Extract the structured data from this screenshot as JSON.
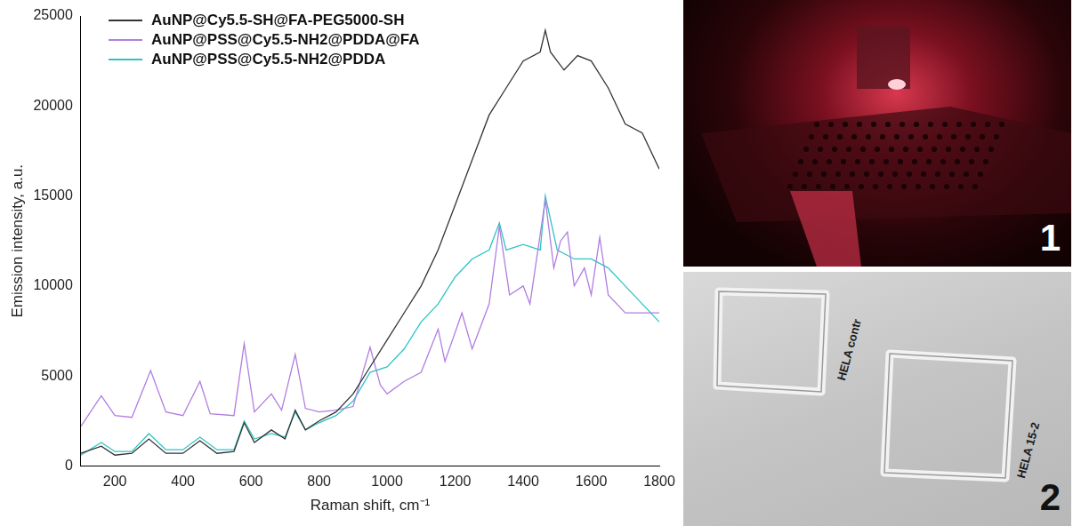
{
  "chart_data": {
    "type": "line",
    "x_label": "Raman shift, cm⁻¹",
    "y_label": "Emission intensity, a.u.",
    "xlim": [
      100,
      1800
    ],
    "xticks": [
      200,
      400,
      600,
      800,
      1000,
      1200,
      1400,
      1600,
      1800
    ],
    "ylim": [
      0,
      25000
    ],
    "yticks": [
      0,
      5000,
      10000,
      15000,
      20000,
      25000
    ],
    "grid": false,
    "legend": "upper left",
    "series": [
      {
        "name": "AuNP@Cy5.5-SH@FA-PEG5000-SH",
        "color": "#333333",
        "x": [
          100,
          160,
          200,
          250,
          300,
          350,
          400,
          450,
          500,
          550,
          580,
          610,
          660,
          700,
          730,
          760,
          800,
          850,
          900,
          950,
          1000,
          1050,
          1100,
          1150,
          1200,
          1250,
          1300,
          1350,
          1400,
          1450,
          1465,
          1480,
          1520,
          1560,
          1600,
          1650,
          1700,
          1750,
          1800
        ],
        "values": [
          700,
          1100,
          600,
          700,
          1500,
          700,
          700,
          1400,
          700,
          800,
          2400,
          1300,
          2000,
          1500,
          3100,
          2000,
          2500,
          3000,
          4000,
          5500,
          7000,
          8500,
          10000,
          12000,
          14500,
          17000,
          19500,
          21000,
          22500,
          23000,
          24200,
          23000,
          22000,
          22800,
          22500,
          21000,
          19000,
          18500,
          16500
        ]
      },
      {
        "name": "AuNP@PSS@Cy5.5-NH2@PDDA@FA",
        "color": "#b07ee0",
        "x": [
          100,
          160,
          200,
          250,
          305,
          350,
          400,
          450,
          480,
          550,
          580,
          610,
          660,
          690,
          730,
          760,
          800,
          850,
          900,
          950,
          980,
          1000,
          1050,
          1100,
          1150,
          1170,
          1220,
          1250,
          1300,
          1330,
          1360,
          1400,
          1420,
          1465,
          1490,
          1510,
          1530,
          1550,
          1580,
          1600,
          1625,
          1650,
          1700,
          1750,
          1800
        ],
        "values": [
          2200,
          3900,
          2800,
          2700,
          5300,
          3000,
          2800,
          4700,
          2900,
          2800,
          6800,
          3000,
          4000,
          3100,
          6200,
          3200,
          3000,
          3100,
          3300,
          6600,
          4500,
          4000,
          4700,
          5200,
          7600,
          5800,
          8500,
          6500,
          9000,
          13300,
          9500,
          10000,
          9000,
          14800,
          11000,
          12500,
          13000,
          10000,
          11000,
          9500,
          12700,
          9500,
          8500,
          8500,
          8500
        ]
      },
      {
        "name": "AuNP@PSS@Cy5.5-NH2@PDDA",
        "color": "#2ec4c4",
        "x": [
          100,
          160,
          200,
          250,
          300,
          350,
          400,
          450,
          500,
          550,
          580,
          610,
          660,
          700,
          730,
          760,
          800,
          850,
          900,
          950,
          1000,
          1050,
          1100,
          1150,
          1200,
          1250,
          1300,
          1330,
          1350,
          1400,
          1450,
          1465,
          1500,
          1550,
          1600,
          1650,
          1700,
          1750,
          1800
        ],
        "values": [
          600,
          1300,
          800,
          800,
          1800,
          900,
          900,
          1600,
          900,
          900,
          2500,
          1500,
          1800,
          1600,
          3000,
          2000,
          2400,
          2800,
          3600,
          5200,
          5500,
          6500,
          8000,
          9000,
          10500,
          11500,
          12000,
          13500,
          12000,
          12300,
          12000,
          15000,
          12000,
          11500,
          11500,
          11000,
          10000,
          9000,
          8000
        ]
      }
    ]
  },
  "photos": [
    {
      "label": "1",
      "texts": []
    },
    {
      "label": "2",
      "texts": [
        "HELA contr",
        "HELA 15-2"
      ]
    }
  ]
}
